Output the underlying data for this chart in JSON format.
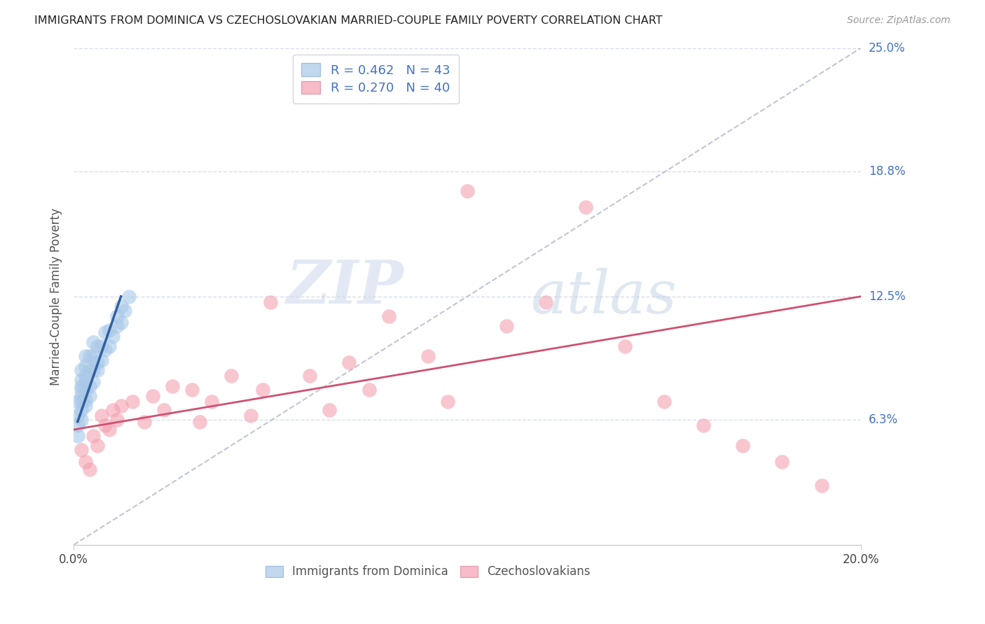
{
  "title": "IMMIGRANTS FROM DOMINICA VS CZECHOSLOVAKIAN MARRIED-COUPLE FAMILY POVERTY CORRELATION CHART",
  "source": "Source: ZipAtlas.com",
  "ylabel": "Married-Couple Family Poverty",
  "watermark_zip": "ZIP",
  "watermark_atlas": "atlas",
  "xlim": [
    0.0,
    0.2
  ],
  "ylim": [
    0.0,
    0.25
  ],
  "xtick_labels": [
    "0.0%",
    "20.0%"
  ],
  "xtick_positions": [
    0.0,
    0.2
  ],
  "ytick_labels": [
    "25.0%",
    "18.8%",
    "12.5%",
    "6.3%"
  ],
  "ytick_positions": [
    0.25,
    0.188,
    0.125,
    0.063
  ],
  "blue_R": 0.462,
  "blue_N": 43,
  "pink_R": 0.27,
  "pink_N": 40,
  "blue_color": "#a8c8e8",
  "pink_color": "#f4a0b0",
  "blue_line_color": "#3060a0",
  "pink_line_color": "#d05070",
  "dashed_line_color": "#b0b8c8",
  "legend_blue_label": "Immigrants from Dominica",
  "legend_pink_label": "Czechoslovakians",
  "blue_scatter_x": [
    0.001,
    0.001,
    0.001,
    0.001,
    0.002,
    0.002,
    0.002,
    0.002,
    0.002,
    0.002,
    0.002,
    0.002,
    0.003,
    0.003,
    0.003,
    0.003,
    0.003,
    0.003,
    0.003,
    0.004,
    0.004,
    0.004,
    0.004,
    0.005,
    0.005,
    0.005,
    0.005,
    0.006,
    0.006,
    0.006,
    0.007,
    0.007,
    0.008,
    0.008,
    0.009,
    0.009,
    0.01,
    0.011,
    0.011,
    0.012,
    0.012,
    0.013,
    0.014
  ],
  "blue_scatter_y": [
    0.055,
    0.06,
    0.065,
    0.072,
    0.063,
    0.068,
    0.072,
    0.075,
    0.078,
    0.08,
    0.083,
    0.088,
    0.07,
    0.073,
    0.078,
    0.082,
    0.085,
    0.09,
    0.095,
    0.075,
    0.08,
    0.088,
    0.095,
    0.082,
    0.088,
    0.095,
    0.102,
    0.088,
    0.092,
    0.1,
    0.093,
    0.1,
    0.098,
    0.107,
    0.1,
    0.108,
    0.105,
    0.11,
    0.115,
    0.112,
    0.12,
    0.118,
    0.125
  ],
  "pink_scatter_x": [
    0.002,
    0.003,
    0.004,
    0.005,
    0.006,
    0.007,
    0.008,
    0.009,
    0.01,
    0.011,
    0.012,
    0.015,
    0.018,
    0.02,
    0.023,
    0.025,
    0.03,
    0.032,
    0.035,
    0.04,
    0.045,
    0.048,
    0.05,
    0.06,
    0.065,
    0.07,
    0.075,
    0.08,
    0.09,
    0.095,
    0.1,
    0.11,
    0.12,
    0.13,
    0.14,
    0.15,
    0.16,
    0.17,
    0.18,
    0.19
  ],
  "pink_scatter_y": [
    0.048,
    0.042,
    0.038,
    0.055,
    0.05,
    0.065,
    0.06,
    0.058,
    0.068,
    0.063,
    0.07,
    0.072,
    0.062,
    0.075,
    0.068,
    0.08,
    0.078,
    0.062,
    0.072,
    0.085,
    0.065,
    0.078,
    0.122,
    0.085,
    0.068,
    0.092,
    0.078,
    0.115,
    0.095,
    0.072,
    0.178,
    0.11,
    0.122,
    0.17,
    0.1,
    0.072,
    0.06,
    0.05,
    0.042,
    0.03
  ],
  "background_color": "#ffffff",
  "grid_color": "#d8dce8"
}
